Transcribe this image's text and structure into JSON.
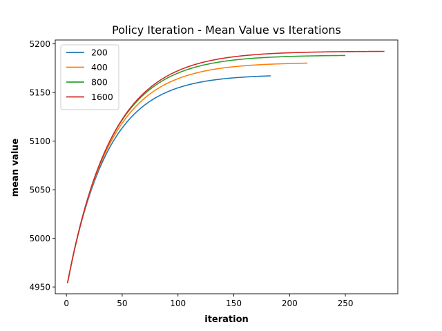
{
  "chart_data": {
    "type": "line",
    "title": "Policy Iteration - Mean Value vs Iterations",
    "xlabel": "iteration",
    "ylabel": "mean value",
    "xlim": [
      -10,
      297
    ],
    "ylim": [
      4943,
      5204
    ],
    "xticks": [
      0,
      50,
      100,
      150,
      200,
      250
    ],
    "yticks": [
      4950,
      5000,
      5050,
      5100,
      5150,
      5200
    ],
    "grid": false,
    "legend_position": "top-left",
    "series": [
      {
        "name": "200",
        "color": "#1f77b4",
        "start": 4954,
        "asymptote": 5168.5,
        "tau": 36,
        "x_end": 183
      },
      {
        "name": "400",
        "color": "#ff7f0e",
        "start": 4954,
        "asymptote": 5181.0,
        "tau": 38,
        "x_end": 216
      },
      {
        "name": "800",
        "color": "#2ca02c",
        "start": 4954,
        "asymptote": 5188.5,
        "tau": 39,
        "x_end": 250
      },
      {
        "name": "1600",
        "color": "#d62728",
        "start": 4954,
        "asymptote": 5192.5,
        "tau": 40,
        "x_end": 285
      }
    ]
  }
}
